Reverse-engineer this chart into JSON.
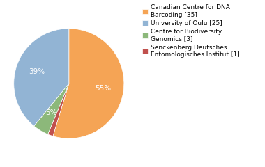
{
  "legend_labels": [
    "Canadian Centre for DNA\nBarcoding [35]",
    "University of Oulu [25]",
    "Centre for Biodiversity\nGenomics [3]",
    "Senckenberg Deutsches\nEntomologisches Institut [1]"
  ],
  "values": [
    35,
    25,
    3,
    1
  ],
  "colors": [
    "#F5A455",
    "#92B4D4",
    "#8CB87A",
    "#C0504D"
  ],
  "background_color": "#ffffff",
  "startangle": 90,
  "font_size": 7.5,
  "legend_font_size": 6.5
}
